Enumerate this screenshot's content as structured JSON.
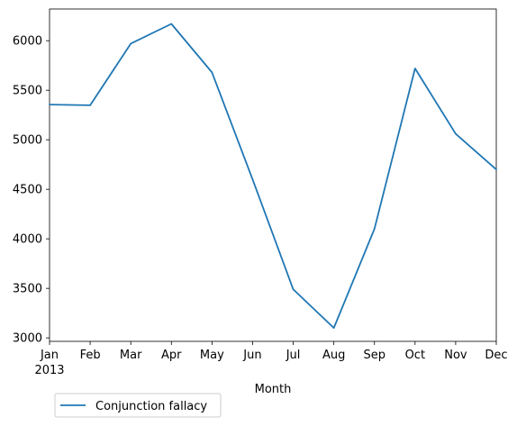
{
  "chart_data": {
    "type": "line",
    "title": "",
    "xlabel": "Month",
    "ylabel": "",
    "categories": [
      "Jan",
      "Feb",
      "Mar",
      "Apr",
      "May",
      "Jun",
      "Jul",
      "Aug",
      "Sep",
      "Oct",
      "Nov",
      "Dec"
    ],
    "x_sublabel": "2013",
    "series": [
      {
        "name": "Conjunction fallacy",
        "color": "#1f77b4",
        "values": [
          5355,
          5348,
          5970,
          6170,
          5680,
          4600,
          3490,
          3100,
          4100,
          5720,
          5060,
          4700
        ]
      }
    ],
    "ylim": [
      2965,
      6320
    ],
    "yticks": [
      3000,
      3500,
      4000,
      4500,
      5000,
      5500,
      6000
    ],
    "grid": false,
    "legend": "lower-left-outside"
  }
}
